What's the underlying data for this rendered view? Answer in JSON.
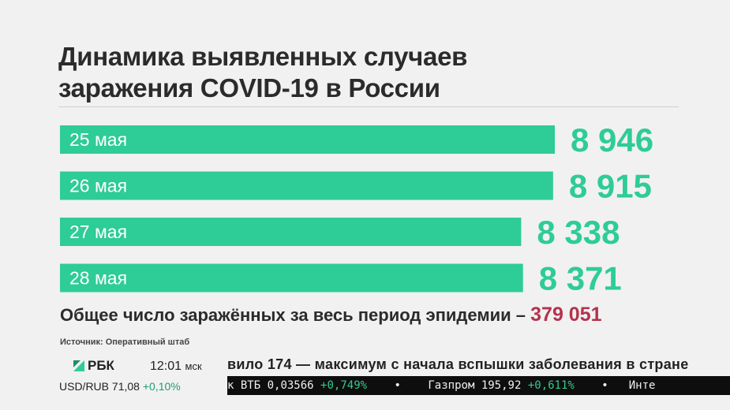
{
  "title": {
    "line1": "Динамика выявленных случаев",
    "line2": "заражения COVID-19 в России"
  },
  "chart_data": {
    "type": "bar",
    "orientation": "horizontal",
    "categories": [
      "25 мая",
      "26 мая",
      "27 мая",
      "28 мая"
    ],
    "values": [
      8946,
      8915,
      8338,
      8371
    ],
    "value_labels": [
      "8 946",
      "8 915",
      "8 338",
      "8 371"
    ],
    "bar_color": "#2ecc96",
    "value_color": "#2ecc96",
    "label_color": "#ffffff",
    "grid": false,
    "legend": "none"
  },
  "total": {
    "text": "Общее число заражённых за весь период эпидемии –",
    "value": "379 051",
    "value_color": "#b3334c"
  },
  "source": "Источник: Оперативный штаб",
  "footer": {
    "logo_text": "РБК",
    "time": "12:01",
    "tz": "мск",
    "headline": "вило 174 — максимум с начала вспышки заболевания в стране",
    "fx_label": "USD/RUB",
    "fx_value": "71,08",
    "fx_change": "+0,10%",
    "ticker": [
      {
        "name": "к ВТБ",
        "price": "0,03566",
        "change": "+0,749%"
      },
      {
        "name": "Газпром",
        "price": "195,92",
        "change": "+0,611%"
      }
    ],
    "ticker_tail": "Инте",
    "ticker_separator": "•"
  }
}
